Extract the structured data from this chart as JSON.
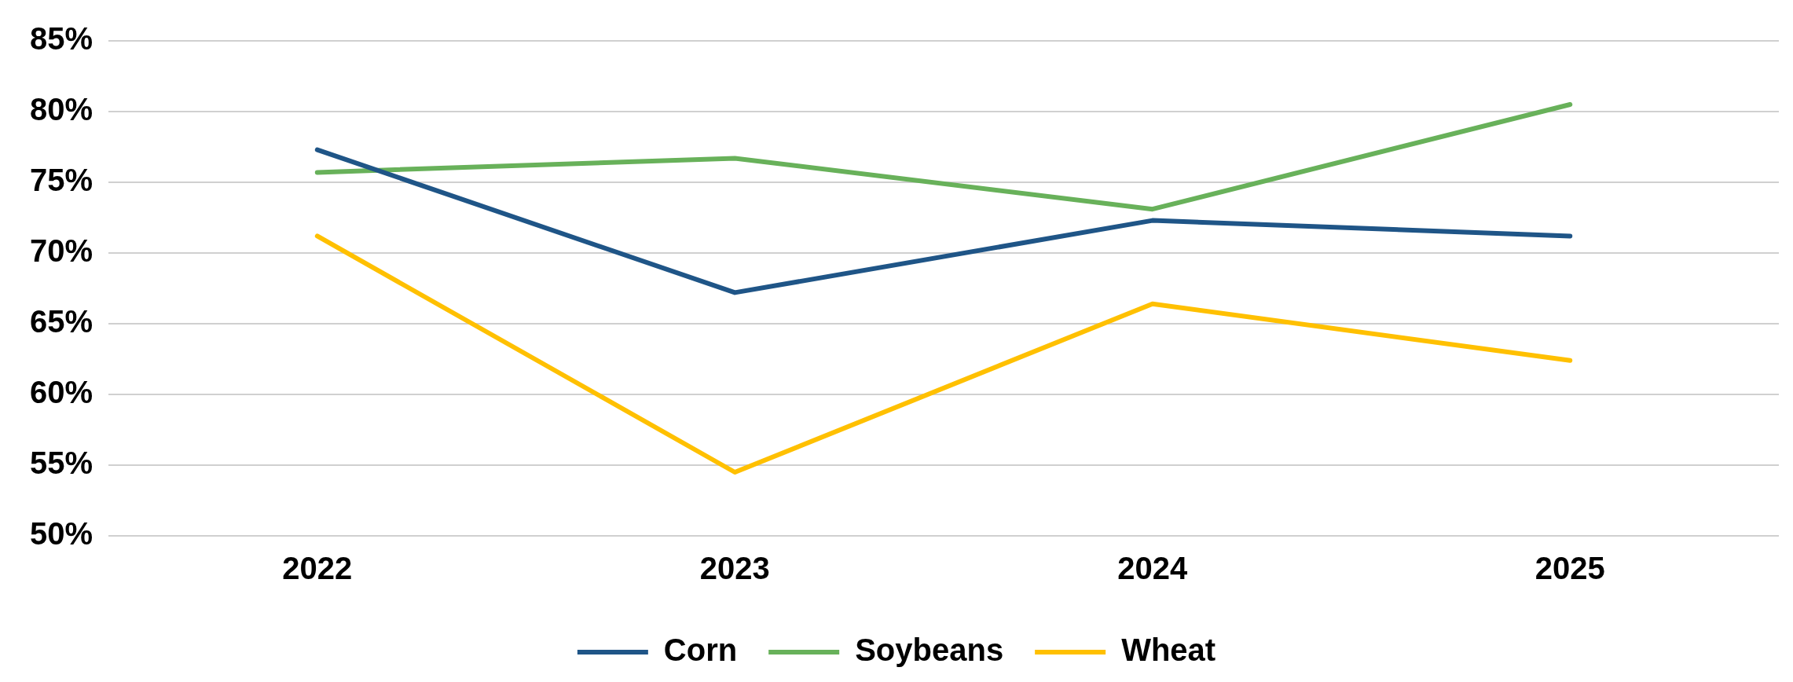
{
  "chart_data": {
    "type": "line",
    "categories": [
      "2022",
      "2023",
      "2024",
      "2025"
    ],
    "series": [
      {
        "name": "Corn",
        "color": "#1f5587",
        "values": [
          77.3,
          67.2,
          72.3,
          71.2
        ]
      },
      {
        "name": "Soybeans",
        "color": "#68b15a",
        "values": [
          75.7,
          76.7,
          73.1,
          80.5
        ]
      },
      {
        "name": "Wheat",
        "color": "#ffc000",
        "values": [
          71.2,
          54.5,
          66.4,
          62.4
        ]
      }
    ],
    "ylim": [
      50,
      85
    ],
    "yticks": [
      {
        "value": 50,
        "label": "50%"
      },
      {
        "value": 55,
        "label": "55%"
      },
      {
        "value": 60,
        "label": "60%"
      },
      {
        "value": 65,
        "label": "65%"
      },
      {
        "value": 70,
        "label": "70%"
      },
      {
        "value": 75,
        "label": "75%"
      },
      {
        "value": 80,
        "label": "80%"
      },
      {
        "value": 85,
        "label": "85%"
      }
    ],
    "grid": "y",
    "legend": "bottom",
    "marker": "none",
    "line_style": "solid"
  }
}
